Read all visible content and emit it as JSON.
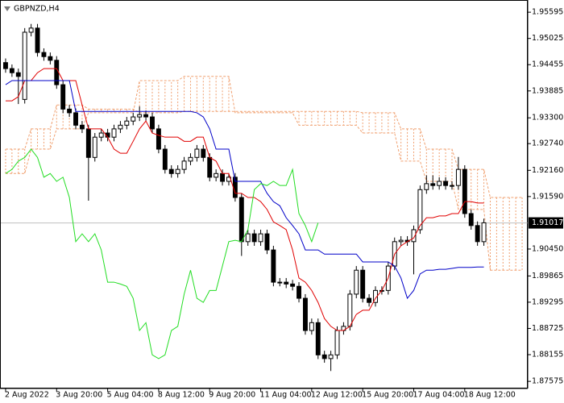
{
  "chart_data": {
    "type": "candlestick",
    "title": "GBPNZD,H4",
    "categories": [
      "2 Aug 2022",
      null,
      null,
      null,
      null,
      null,
      null,
      null,
      "3 Aug 20:00",
      null,
      null,
      null,
      null,
      null,
      null,
      null,
      "5 Aug 04:00",
      null,
      null,
      null,
      null,
      null,
      null,
      null,
      "8 Aug 12:00",
      null,
      null,
      null,
      null,
      null,
      null,
      null,
      "9 Aug 20:00",
      null,
      null,
      null,
      null,
      null,
      null,
      null,
      "11 Aug 04:00",
      null,
      null,
      null,
      null,
      null,
      null,
      null,
      "12 Aug 12:00",
      null,
      null,
      null,
      null,
      null,
      null,
      null,
      "15 Aug 20:00",
      null,
      null,
      null,
      null,
      null,
      null,
      null,
      "17 Aug 04:00",
      null,
      null,
      null,
      null,
      null,
      null,
      null,
      "18 Aug 12:00",
      null,
      null,
      null,
      null,
      null,
      null,
      null,
      null,
      null
    ],
    "open": [
      1.945,
      1.9437,
      1.9428,
      1.937,
      1.9516,
      1.9525,
      1.9472,
      1.9463,
      1.9455,
      1.9402,
      1.9349,
      1.9341,
      1.9314,
      1.9306,
      1.9244,
      1.9288,
      1.9297,
      1.9288,
      1.9306,
      1.9314,
      1.9323,
      1.9332,
      1.9337,
      1.9332,
      1.9306,
      1.9262,
      1.9218,
      1.9209,
      1.9218,
      1.9236,
      1.9244,
      1.9262,
      1.9244,
      1.9201,
      1.9209,
      1.9192,
      1.9201,
      1.9157,
      1.9061,
      1.9078,
      1.9061,
      1.9078,
      1.9043,
      1.8973,
      1.8973,
      1.8969,
      1.8964,
      1.8938,
      1.8868,
      1.8885,
      1.8815,
      1.8807,
      1.8815,
      1.8868,
      1.8877,
      1.8947,
      1.8999,
      1.8938,
      1.8929,
      1.8955,
      1.8955,
      1.9008,
      1.9061,
      1.9064,
      1.9061,
      1.9087,
      1.9174,
      1.9187,
      1.9183,
      1.9192,
      1.9183,
      1.9183,
      1.9218,
      1.9122,
      1.9096,
      1.9061,
      null,
      null,
      null,
      null,
      null,
      null
    ],
    "high": [
      1.9459,
      1.9446,
      1.9437,
      1.9525,
      1.9534,
      1.9534,
      1.9481,
      1.9472,
      1.9464,
      1.9411,
      1.9358,
      1.935,
      1.9323,
      1.9315,
      1.9297,
      1.9306,
      1.9306,
      1.9315,
      1.9323,
      1.9332,
      1.9341,
      1.9355,
      1.9346,
      1.9341,
      1.9315,
      1.9271,
      1.9227,
      1.9227,
      1.9245,
      1.9253,
      1.9271,
      1.9271,
      1.9253,
      1.9218,
      1.9218,
      1.921,
      1.921,
      1.9166,
      1.9087,
      1.9087,
      1.9087,
      1.9087,
      1.9052,
      1.8982,
      1.8982,
      1.8978,
      1.8973,
      1.8947,
      1.8894,
      1.8894,
      1.8824,
      1.8824,
      1.8877,
      1.8886,
      1.8956,
      1.9008,
      1.9008,
      1.8947,
      1.8964,
      1.8964,
      1.9017,
      1.907,
      1.9073,
      1.9073,
      1.9096,
      1.9183,
      1.9205,
      1.9205,
      1.9201,
      1.9201,
      1.9192,
      1.9245,
      1.9227,
      1.9131,
      1.9105,
      1.9111,
      null,
      null,
      null,
      null,
      null,
      null
    ],
    "low": [
      1.9428,
      1.9419,
      1.936,
      1.9361,
      1.9507,
      1.9463,
      1.9454,
      1.9446,
      1.9393,
      1.934,
      1.9332,
      1.9305,
      1.9297,
      1.915,
      1.9235,
      1.9279,
      1.9279,
      1.9279,
      1.9297,
      1.9305,
      1.9314,
      1.9323,
      1.9323,
      1.9297,
      1.9253,
      1.9209,
      1.92,
      1.92,
      1.9209,
      1.9227,
      1.9235,
      1.9235,
      1.9192,
      1.9192,
      1.9183,
      1.9183,
      1.9148,
      1.903,
      1.9052,
      1.9052,
      1.9052,
      1.9034,
      1.8964,
      1.8964,
      1.896,
      1.8955,
      1.8929,
      1.8859,
      1.8859,
      1.8806,
      1.8798,
      1.878,
      1.8806,
      1.8859,
      1.8868,
      1.8938,
      1.8929,
      1.892,
      1.892,
      1.8946,
      1.8946,
      1.8999,
      1.9052,
      1.9052,
      1.899,
      1.9078,
      1.9165,
      1.9174,
      1.9174,
      1.9174,
      1.9174,
      1.9174,
      1.9113,
      1.9087,
      1.9052,
      1.9052,
      null,
      null,
      null,
      null,
      null,
      null
    ],
    "close": [
      1.9437,
      1.9428,
      1.942,
      1.9516,
      1.9525,
      1.9472,
      1.9463,
      1.9455,
      1.9402,
      1.9349,
      1.9341,
      1.9314,
      1.9306,
      1.9244,
      1.9288,
      1.9297,
      1.9288,
      1.9306,
      1.9314,
      1.9323,
      1.9332,
      1.9337,
      1.9332,
      1.9306,
      1.9262,
      1.9218,
      1.9209,
      1.9218,
      1.9236,
      1.9244,
      1.9262,
      1.9244,
      1.9201,
      1.9209,
      1.9192,
      1.9201,
      1.9157,
      1.9061,
      1.9078,
      1.9061,
      1.9078,
      1.9043,
      1.8973,
      1.8973,
      1.8969,
      1.8964,
      1.8938,
      1.8868,
      1.8885,
      1.8815,
      1.8807,
      1.8815,
      1.8868,
      1.8877,
      1.8947,
      1.8999,
      1.8938,
      1.8929,
      1.8955,
      1.8955,
      1.9008,
      1.9061,
      1.9064,
      1.9061,
      1.9087,
      1.9174,
      1.9187,
      1.9183,
      1.9192,
      1.9183,
      1.9183,
      1.9218,
      1.9122,
      1.9096,
      1.9061,
      1.9102,
      null,
      null,
      null,
      null,
      null,
      null
    ],
    "up_color": "#ffffff",
    "down_color": "#000000",
    "candle_edge": "#000000",
    "lines": [
      {
        "color": "#e00000",
        "values": [
          1.9367,
          1.9367,
          1.9376,
          1.9411,
          1.9411,
          1.9428,
          1.9437,
          1.9437,
          1.9437,
          1.9411,
          1.9411,
          1.9411,
          1.9358,
          1.9306,
          1.9306,
          1.9306,
          1.9288,
          1.9262,
          1.9253,
          1.9253,
          1.9279,
          1.9306,
          1.9323,
          1.9297,
          1.9292,
          1.9288,
          1.9288,
          1.9288,
          1.9279,
          1.9279,
          1.9288,
          1.9288,
          1.9244,
          1.9236,
          1.9209,
          1.9209,
          1.9166,
          1.9166,
          1.9157,
          1.9157,
          1.9148,
          1.9131,
          1.9104,
          1.9096,
          1.9087,
          1.9043,
          1.8982,
          1.8973,
          1.8955,
          1.8929,
          1.8894,
          1.8877,
          1.8868,
          1.8868,
          1.8877,
          1.8903,
          1.8912,
          1.8912,
          1.8938,
          1.8955,
          1.8982,
          1.9034,
          1.9052,
          1.9061,
          1.9069,
          1.9096,
          1.9113,
          1.9113,
          1.9117,
          1.9117,
          1.9122,
          1.9122,
          1.9148,
          1.9148,
          1.9145,
          1.9145,
          null,
          null,
          null,
          null,
          null,
          null
        ]
      },
      {
        "color": "#0000c8",
        "values": [
          1.9402,
          1.9411,
          1.9411,
          1.9411,
          1.9411,
          1.9411,
          1.9411,
          1.9411,
          1.9411,
          1.9411,
          1.9411,
          1.9344,
          1.9344,
          1.9344,
          1.9344,
          1.9344,
          1.9344,
          1.9344,
          1.9344,
          1.9344,
          1.9344,
          1.9344,
          1.9344,
          1.9344,
          1.9344,
          1.9344,
          1.9344,
          1.9344,
          1.9344,
          1.9344,
          1.9341,
          1.9332,
          1.9306,
          1.9262,
          1.9262,
          1.9262,
          1.9192,
          1.9192,
          1.9192,
          1.9192,
          1.9192,
          1.9166,
          1.9148,
          1.9139,
          1.9113,
          1.9096,
          1.9078,
          1.9043,
          1.9043,
          1.9043,
          1.9034,
          1.9034,
          1.9034,
          1.9034,
          1.9034,
          1.9034,
          1.9017,
          1.9017,
          1.9017,
          1.9017,
          1.9017,
          1.9008,
          1.8982,
          1.8938,
          1.8955,
          1.8991,
          1.8999,
          1.8999,
          1.9001,
          1.9001,
          1.9003,
          1.9005,
          1.9005,
          1.9005,
          1.9006,
          1.9006,
          null,
          null,
          null,
          null,
          null,
          null
        ]
      },
      {
        "color": "#22dd22",
        "values": [
          1.9209,
          1.9218,
          1.9236,
          1.9244,
          1.9262,
          1.9244,
          1.9201,
          1.9209,
          1.9192,
          1.9201,
          1.9157,
          1.9061,
          1.9078,
          1.9061,
          1.9078,
          1.9043,
          1.8973,
          1.8973,
          1.8969,
          1.8964,
          1.8938,
          1.8868,
          1.8885,
          1.8815,
          1.8807,
          1.8815,
          1.8868,
          1.8877,
          1.8947,
          1.8999,
          1.8938,
          1.8929,
          1.8955,
          1.8955,
          1.9008,
          1.9061,
          1.9064,
          1.9061,
          1.9087,
          1.9174,
          1.9187,
          1.9183,
          1.9192,
          1.9183,
          1.9183,
          1.9218,
          1.9122,
          1.9096,
          1.9061,
          1.9102,
          null,
          null,
          null,
          null,
          null,
          null,
          null,
          null,
          null,
          null,
          null,
          null,
          null,
          null,
          null,
          null,
          null,
          null,
          null,
          null,
          null,
          null,
          null,
          null,
          null,
          null,
          null,
          null,
          null,
          null,
          null,
          null
        ]
      }
    ],
    "cloud": {
      "color": "#f0a070",
      "span_a": [
        1.9262,
        1.9262,
        1.9262,
        1.9262,
        1.9306,
        1.9306,
        1.9306,
        1.9306,
        1.9358,
        1.9358,
        1.9358,
        1.9358,
        1.9358,
        1.9349,
        1.9349,
        1.9349,
        1.9349,
        1.9349,
        1.9349,
        1.9349,
        1.9349,
        1.9341,
        1.9341,
        1.9341,
        1.9341,
        1.9341,
        1.9341,
        1.9341,
        1.9344,
        1.9344,
        1.9344,
        1.9344,
        1.9344,
        1.9344,
        1.9344,
        1.9344,
        1.9344,
        1.9344,
        1.9344,
        1.9344,
        1.9344,
        1.9344,
        1.9344,
        1.9344,
        1.9344,
        1.9344,
        1.9344,
        1.9344,
        1.9344,
        1.9344,
        1.9344,
        1.9344,
        1.9344,
        1.9344,
        1.9344,
        1.9344,
        1.9341,
        1.9341,
        1.9341,
        1.9341,
        1.9341,
        1.9341,
        1.9306,
        1.9306,
        1.9306,
        1.9306,
        1.9262,
        1.9262,
        1.9262,
        1.9262,
        1.9262,
        1.9218,
        1.9218,
        1.9218,
        1.9218,
        1.9218,
        1.9157,
        1.9157,
        1.9157,
        1.9157,
        1.9157,
        1.9157
      ],
      "span_b": [
        1.9209,
        1.9209,
        1.9209,
        1.9209,
        1.9262,
        1.9262,
        1.9262,
        1.9262,
        1.9306,
        1.9306,
        1.9306,
        1.9306,
        1.9306,
        1.9341,
        1.9341,
        1.9341,
        1.9341,
        1.9341,
        1.9341,
        1.9341,
        1.9341,
        1.9411,
        1.9411,
        1.9411,
        1.9411,
        1.9411,
        1.9411,
        1.9411,
        1.942,
        1.942,
        1.942,
        1.942,
        1.942,
        1.942,
        1.942,
        1.942,
        1.9341,
        1.9341,
        1.9341,
        1.9341,
        1.9341,
        1.9341,
        1.9341,
        1.9341,
        1.9341,
        1.9341,
        1.9314,
        1.9314,
        1.9314,
        1.9314,
        1.9314,
        1.9314,
        1.9314,
        1.9314,
        1.9314,
        1.9314,
        1.9297,
        1.9297,
        1.9297,
        1.9297,
        1.9297,
        1.9297,
        1.9236,
        1.9236,
        1.9236,
        1.9236,
        1.9192,
        1.9192,
        1.9192,
        1.9192,
        1.9192,
        1.9131,
        1.9131,
        1.9131,
        1.9131,
        1.9131,
        1.8999,
        1.8999,
        1.8999,
        1.8999,
        1.8999,
        1.8999
      ]
    },
    "last_price": 1.91017,
    "ylim": [
      1.8742,
      1.9586
    ],
    "yticks": [
      1.95595,
      1.95025,
      1.94455,
      1.93885,
      {
        "value": 1.933,
        "label": "1.93300"
      },
      {
        "value": 1.9274,
        "label": "1.92740"
      },
      {
        "value": 1.9216,
        "label": "1.92160"
      },
      {
        "value": 1.9159,
        "label": "1.91590"
      },
      {
        "value": 1.9045,
        "label": "1.90450"
      },
      1.89865,
      1.89295,
      1.88725,
      1.88155,
      1.87575
    ],
    "grid": false
  }
}
